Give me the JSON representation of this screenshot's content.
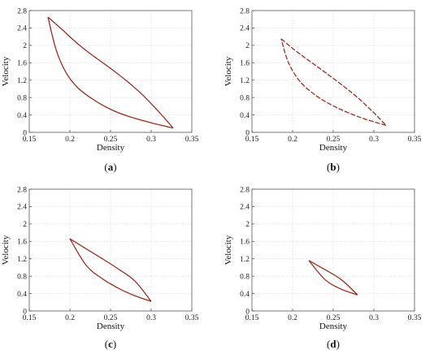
{
  "curve_color": "#9b2d1f",
  "chart_data": [
    {
      "type": "line",
      "caption": "a",
      "xlabel": "Density",
      "ylabel": "Velocity",
      "xlim": [
        0.15,
        0.35
      ],
      "ylim": [
        0,
        2.8
      ],
      "x_ticks": [
        "0.15",
        "0.2",
        "0.25",
        "0.3",
        "0.35"
      ],
      "y_ticks": [
        "0",
        "0.4",
        "0.8",
        "1.2",
        "1.6",
        "2",
        "2.4",
        "2.8"
      ],
      "grid": true,
      "line_style": "solid",
      "series": [
        {
          "points": [
            [
              0.173,
              2.65
            ],
            [
              0.19,
              2.37
            ],
            [
              0.21,
              2.03
            ],
            [
              0.23,
              1.74
            ],
            [
              0.25,
              1.47
            ],
            [
              0.27,
              1.18
            ],
            [
              0.29,
              0.85
            ],
            [
              0.31,
              0.46
            ],
            [
              0.327,
              0.1
            ]
          ]
        },
        {
          "points": [
            [
              0.327,
              0.1
            ],
            [
              0.3,
              0.22
            ],
            [
              0.27,
              0.38
            ],
            [
              0.25,
              0.53
            ],
            [
              0.23,
              0.74
            ],
            [
              0.21,
              1.02
            ],
            [
              0.195,
              1.38
            ],
            [
              0.183,
              1.9
            ],
            [
              0.173,
              2.65
            ]
          ]
        }
      ]
    },
    {
      "type": "line",
      "caption": "b",
      "xlabel": "Density",
      "ylabel": "Velocity",
      "xlim": [
        0.15,
        0.35
      ],
      "ylim": [
        0,
        2.8
      ],
      "x_ticks": [
        "0.15",
        "0.2",
        "0.25",
        "0.3",
        "0.35"
      ],
      "y_ticks": [
        "0",
        "0.4",
        "0.8",
        "1.2",
        "1.6",
        "2",
        "2.4",
        "2.8"
      ],
      "grid": true,
      "line_style": "dashed",
      "series": [
        {
          "points": [
            [
              0.186,
              2.15
            ],
            [
              0.2,
              1.93
            ],
            [
              0.22,
              1.65
            ],
            [
              0.24,
              1.38
            ],
            [
              0.26,
              1.1
            ],
            [
              0.28,
              0.8
            ],
            [
              0.3,
              0.45
            ],
            [
              0.315,
              0.16
            ]
          ]
        },
        {
          "points": [
            [
              0.315,
              0.16
            ],
            [
              0.29,
              0.3
            ],
            [
              0.27,
              0.44
            ],
            [
              0.25,
              0.61
            ],
            [
              0.23,
              0.83
            ],
            [
              0.21,
              1.15
            ],
            [
              0.195,
              1.6
            ],
            [
              0.186,
              2.15
            ]
          ]
        }
      ]
    },
    {
      "type": "line",
      "caption": "c",
      "xlabel": "Density",
      "ylabel": "Velocity",
      "xlim": [
        0.15,
        0.35
      ],
      "ylim": [
        0,
        2.8
      ],
      "x_ticks": [
        "0.15",
        "0.2",
        "0.25",
        "0.3",
        "0.35"
      ],
      "y_ticks": [
        "0",
        "0.4",
        "0.8",
        "1.2",
        "1.6",
        "2",
        "2.4",
        "2.8"
      ],
      "grid": true,
      "line_style": "solid",
      "series": [
        {
          "points": [
            [
              0.2,
              1.66
            ],
            [
              0.22,
              1.43
            ],
            [
              0.24,
              1.2
            ],
            [
              0.26,
              0.96
            ],
            [
              0.28,
              0.69
            ],
            [
              0.3,
              0.22
            ]
          ]
        },
        {
          "points": [
            [
              0.3,
              0.22
            ],
            [
              0.28,
              0.35
            ],
            [
              0.26,
              0.52
            ],
            [
              0.24,
              0.74
            ],
            [
              0.22,
              1.05
            ],
            [
              0.2,
              1.66
            ]
          ]
        }
      ]
    },
    {
      "type": "line",
      "caption": "d",
      "xlabel": "Density",
      "ylabel": "Velocity",
      "xlim": [
        0.15,
        0.35
      ],
      "ylim": [
        0,
        2.8
      ],
      "x_ticks": [
        "0.15",
        "0.2",
        "0.25",
        "0.3",
        "0.35"
      ],
      "y_ticks": [
        "0",
        "0.4",
        "0.8",
        "1.2",
        "1.6",
        "2",
        "2.4",
        "2.8"
      ],
      "grid": true,
      "line_style": "solid",
      "series": [
        {
          "points": [
            [
              0.22,
              1.16
            ],
            [
              0.24,
              0.95
            ],
            [
              0.26,
              0.72
            ],
            [
              0.28,
              0.37
            ]
          ]
        },
        {
          "points": [
            [
              0.28,
              0.37
            ],
            [
              0.26,
              0.5
            ],
            [
              0.24,
              0.72
            ],
            [
              0.22,
              1.16
            ]
          ]
        }
      ]
    }
  ]
}
